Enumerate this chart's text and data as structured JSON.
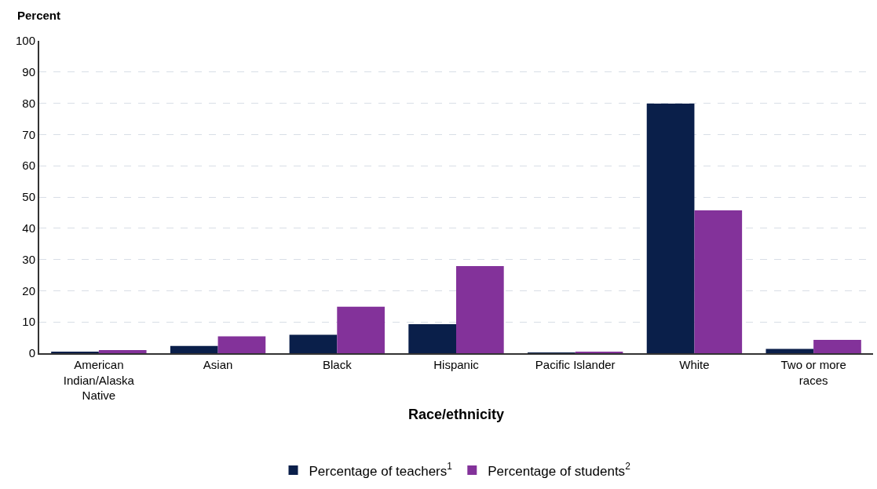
{
  "chart_data": {
    "type": "bar",
    "xlabel": "Race/ethnicity",
    "ylabel": "Percent",
    "categories": [
      "American Indian/Alaska Native",
      "Asian",
      "Black",
      "Hispanic",
      "Pacific Islander",
      "White",
      "Two or more races"
    ],
    "series": [
      {
        "name": "Percentage of teachers$^{1}$",
        "color": "#0a1f4a",
        "values": [
          0.4,
          2.3,
          5.9,
          9.3,
          0.1,
          79.9,
          1.4
        ]
      },
      {
        "name": "Percentage of students$^{2}$",
        "color": "#83329a",
        "values": [
          1.0,
          5.4,
          14.9,
          27.9,
          0.4,
          45.7,
          4.3
        ]
      }
    ],
    "ylim": [
      0,
      100
    ],
    "yticks": [
      0,
      10,
      20,
      30,
      40,
      50,
      60,
      70,
      80,
      90,
      100
    ],
    "grid": "y",
    "legend": "bottom"
  }
}
